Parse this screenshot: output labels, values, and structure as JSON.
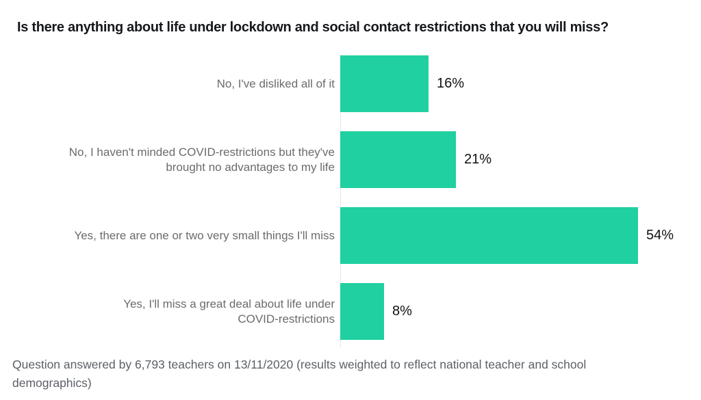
{
  "title": "Is there anything about life under lockdown and social contact restrictions that you will miss?",
  "footnote": "Question answered by 6,793 teachers on 13/11/2020 (results weighted to reflect national teacher and school\ndemographics)",
  "colors": {
    "bar": "#20d0a0",
    "category_label": "#6b6b6b",
    "value_label": "#111111",
    "title": "#15171c",
    "footnote": "#5c6066",
    "axis_line": "#cccccc",
    "background": "#ffffff"
  },
  "chart_data": {
    "type": "bar",
    "orientation": "horizontal",
    "title": "Is there anything about life under lockdown and social contact restrictions that you will miss?",
    "categories": [
      "No, I've disliked all of it",
      "No, I haven't minded COVID-restrictions but they've\nbrought no advantages to my life",
      "Yes, there are one or two very small things I'll miss",
      "Yes, I'll miss a great deal about life under\nCOVID-restrictions"
    ],
    "values": [
      16,
      21,
      54,
      8
    ],
    "value_labels": [
      "16%",
      "21%",
      "54%",
      "8%"
    ],
    "unit": "%",
    "xlim": [
      0,
      65
    ],
    "grid": false,
    "legend": false,
    "annotation": "Question answered by 6,793 teachers on 13/11/2020 (results weighted to reflect national teacher and school demographics)"
  }
}
